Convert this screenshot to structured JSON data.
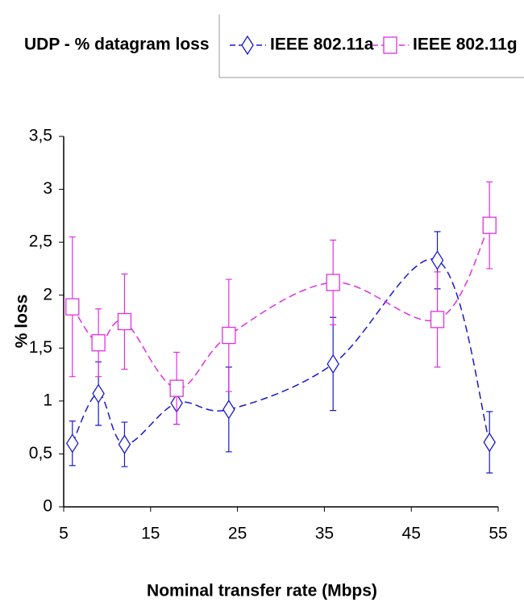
{
  "chart_data": {
    "type": "line",
    "legend_title": "UDP - % datagram loss",
    "x_label": "Nominal transfer rate (Mbps)",
    "y_label": "% loss",
    "x": [
      6,
      9,
      12,
      18,
      24,
      36,
      48,
      54
    ],
    "series": [
      {
        "name": "IEEE 802.11a",
        "color": "#1a1acc",
        "marker": "diamond",
        "values": [
          0.6,
          1.07,
          0.59,
          0.98,
          0.92,
          1.35,
          2.33,
          0.61
        ],
        "errors": [
          0.21,
          0.3,
          0.21,
          0.2,
          0.4,
          0.44,
          0.27,
          0.29
        ]
      },
      {
        "name": "IEEE 802.11g",
        "color": "#e030e0",
        "marker": "square",
        "values": [
          1.89,
          1.55,
          1.75,
          1.12,
          1.62,
          2.12,
          1.77,
          2.66
        ],
        "errors": [
          0.66,
          0.32,
          0.45,
          0.34,
          0.53,
          0.4,
          0.45,
          0.41
        ]
      }
    ],
    "xlim": [
      5,
      55
    ],
    "xticks": [
      5,
      15,
      25,
      35,
      45,
      55
    ],
    "ylim": [
      0,
      3.5
    ],
    "yticks": [
      0,
      {
        "value": 0.5,
        "label": "0,5"
      },
      1,
      {
        "value": 1.5,
        "label": "1,5"
      },
      2,
      {
        "value": 2.5,
        "label": "2,5"
      },
      3,
      {
        "value": 3.5,
        "label": "3,5"
      }
    ],
    "grid": false
  }
}
